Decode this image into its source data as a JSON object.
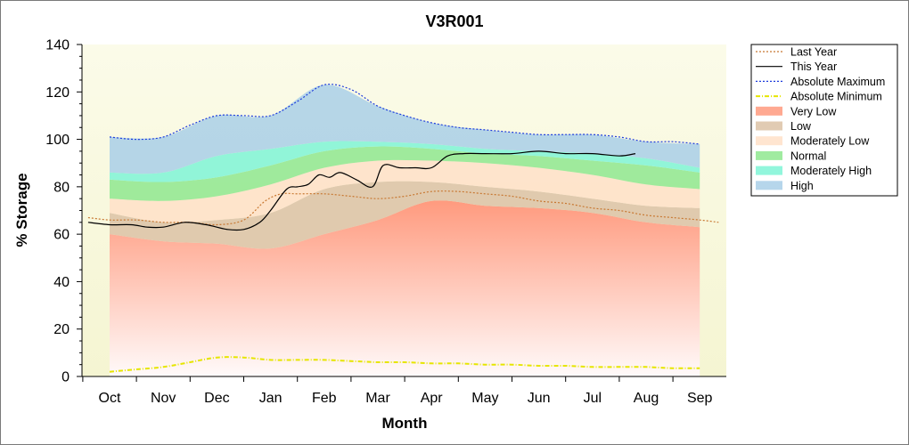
{
  "chart_data": {
    "type": "area",
    "title": "V3R001",
    "xlabel": "Month",
    "ylabel": "% Storage",
    "ylim": [
      0,
      140
    ],
    "yticks": [
      0,
      20,
      40,
      60,
      80,
      100,
      120,
      140
    ],
    "categories": [
      "Oct",
      "Nov",
      "Dec",
      "Jan",
      "Feb",
      "Mar",
      "Apr",
      "May",
      "Jun",
      "Jul",
      "Aug",
      "Sep"
    ],
    "grid": false,
    "legend_position": "right",
    "bands": [
      {
        "name": "Very Low",
        "color": "#ff9a7e",
        "lower": [
          0,
          0,
          0,
          0,
          0,
          0,
          0,
          0,
          0,
          0,
          0,
          0
        ],
        "upper": [
          60,
          57,
          56,
          54,
          60,
          66,
          74,
          72,
          71,
          69,
          65,
          63
        ]
      },
      {
        "name": "Low",
        "color": "#dcc2a6",
        "lower": [
          60,
          57,
          56,
          54,
          60,
          66,
          74,
          72,
          71,
          69,
          65,
          63
        ],
        "upper": [
          69,
          65,
          66,
          69,
          79,
          82,
          82,
          80,
          78,
          75,
          72,
          71
        ]
      },
      {
        "name": "Moderately Low",
        "color": "#ffe0c8",
        "lower": [
          69,
          65,
          66,
          69,
          79,
          82,
          82,
          80,
          78,
          75,
          72,
          71
        ],
        "upper": [
          75,
          74,
          76,
          81,
          88,
          91,
          91,
          90,
          88,
          85,
          81,
          79
        ]
      },
      {
        "name": "Normal",
        "color": "#8fe88f",
        "lower": [
          75,
          74,
          76,
          81,
          88,
          91,
          91,
          90,
          88,
          85,
          81,
          79
        ],
        "upper": [
          83,
          82,
          84,
          89,
          95,
          97,
          96,
          94,
          93,
          91,
          89,
          86
        ]
      },
      {
        "name": "Moderately High",
        "color": "#7ff5d6",
        "lower": [
          83,
          82,
          84,
          89,
          95,
          97,
          96,
          94,
          93,
          91,
          89,
          86
        ],
        "upper": [
          86,
          86,
          93,
          96,
          99,
          99,
          98,
          96,
          95,
          94,
          92,
          88
        ]
      },
      {
        "name": "High",
        "color": "#a9cfe8",
        "lower": [
          86,
          86,
          93,
          96,
          99,
          99,
          98,
          96,
          95,
          94,
          92,
          88
        ],
        "upper": [
          101,
          101,
          110,
          110,
          123,
          114,
          107,
          104,
          102,
          102,
          99,
          98
        ]
      }
    ],
    "series": [
      {
        "name": "Last Year",
        "color": "#c87832",
        "style": "dotted",
        "x": [
          -0.4,
          0,
          0.5,
          1,
          1.5,
          2,
          2.5,
          2.9,
          3.2,
          3.5,
          4,
          4.5,
          5,
          5.5,
          6,
          6.5,
          7,
          7.5,
          8,
          8.5,
          9,
          9.5,
          10,
          10.5,
          11,
          11.35
        ],
        "values": [
          67,
          66,
          66,
          65,
          65,
          64,
          66,
          74,
          77,
          77,
          77,
          76,
          75,
          76,
          78,
          78,
          77,
          76,
          74,
          73,
          71,
          70,
          68,
          67,
          66,
          65
        ]
      },
      {
        "name": "This Year",
        "color": "#000000",
        "style": "solid",
        "x": [
          -0.4,
          0,
          0.4,
          0.7,
          1,
          1.4,
          1.8,
          2.2,
          2.5,
          2.8,
          3.0,
          3.3,
          3.5,
          3.7,
          3.9,
          4.1,
          4.3,
          4.6,
          4.9,
          5.1,
          5.4,
          5.7,
          6.0,
          6.3,
          6.6,
          7,
          7.5,
          8,
          8.5,
          9,
          9.5,
          9.8
        ],
        "values": [
          65,
          64,
          64,
          63,
          63,
          65,
          64,
          62,
          62,
          65,
          70,
          79,
          80,
          81,
          85,
          84,
          86,
          83,
          80,
          89,
          88,
          88,
          88,
          93,
          94,
          94,
          94,
          95,
          94,
          94,
          93,
          94
        ]
      },
      {
        "name": "Absolute Maximum",
        "color": "#1e3cdc",
        "style": "dotted",
        "x": [
          0,
          0.5,
          1,
          1.5,
          2,
          2.5,
          3,
          3.5,
          4,
          4.5,
          5,
          5.5,
          6,
          6.5,
          7,
          7.5,
          8,
          8.5,
          9,
          9.5,
          10,
          10.5,
          11
        ],
        "values": [
          101,
          100,
          101,
          106,
          110,
          110,
          110,
          116,
          123,
          121,
          114,
          110,
          107,
          105,
          104,
          103,
          102,
          102,
          102,
          101,
          99,
          99,
          98
        ]
      },
      {
        "name": "Absolute Minimum",
        "color": "#e6e600",
        "style": "dashdot",
        "x": [
          0,
          0.5,
          1,
          1.5,
          2,
          2.5,
          3,
          3.5,
          4,
          4.5,
          5,
          5.5,
          6,
          6.5,
          7,
          7.5,
          8,
          8.5,
          9,
          9.5,
          10,
          10.5,
          11
        ],
        "values": [
          2,
          3,
          4,
          6,
          8,
          8,
          7,
          7,
          7,
          6.5,
          6,
          6,
          5.5,
          5.5,
          5,
          5,
          4.5,
          4.5,
          4,
          4,
          4,
          3.5,
          3.5
        ]
      }
    ],
    "legend": [
      "Last Year",
      "This Year",
      "Absolute Maximum",
      "Absolute Minimum",
      "Very Low",
      "Low",
      "Moderately Low",
      "Normal",
      "Moderately High",
      "High"
    ]
  }
}
